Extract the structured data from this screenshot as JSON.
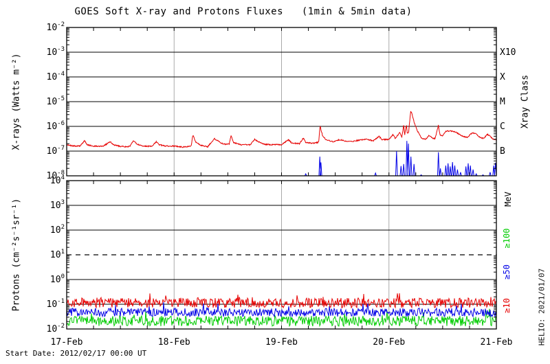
{
  "title": "GOES Soft X-ray and Protons Fluxes   (1min & 5min data)",
  "start_date": "Start Date: 2012/02/17 00:00 UT",
  "credit": "HELIO: 2021/01/07",
  "chart_data": {
    "type": "line",
    "title": "GOES Soft X-ray and Protons Fluxes (1min & 5min data)",
    "x_axis": {
      "range_hours": [
        0,
        96
      ],
      "tick_labels": [
        "17-Feb",
        "18-Feb",
        "19-Feb",
        "20-Feb",
        "21-Feb"
      ],
      "tick_hours": [
        0,
        24,
        48,
        72,
        96
      ],
      "minor_tick_hours": 6,
      "day_gridline_hours": [
        24,
        48,
        72
      ],
      "day_gridline_color": "#a9a9a9"
    },
    "panels": [
      {
        "id": "xray",
        "ylabel": "X-rays (Watts m⁻²)",
        "right_label": "Xray Class",
        "y_exp_range": [
          -8,
          -2
        ],
        "y_tick_exps": [
          -2,
          -3,
          -4,
          -5,
          -6,
          -7,
          -8
        ],
        "gridline_exps": [
          -3,
          -4,
          -5,
          -6,
          -7
        ],
        "class_labels": [
          {
            "text": "X10",
            "exp": -3
          },
          {
            "text": "X",
            "exp": -4
          },
          {
            "text": "M",
            "exp": -5
          },
          {
            "text": "C",
            "exp": -6
          },
          {
            "text": "B",
            "exp": -7
          }
        ],
        "series": [
          {
            "name": "xray-long-wavelength",
            "color": "#e60000",
            "style": "anchors",
            "noise_dex": 0.045,
            "seed": 11,
            "anchors": [
              [
                0,
                1.8e-07
              ],
              [
                1.5,
                1.6e-07
              ],
              [
                3,
                1.6e-07
              ],
              [
                4,
                2.6e-07
              ],
              [
                4.6,
                1.8e-07
              ],
              [
                6,
                1.6e-07
              ],
              [
                8,
                1.55e-07
              ],
              [
                9.8,
                2.4e-07
              ],
              [
                10.4,
                1.8e-07
              ],
              [
                12,
                1.55e-07
              ],
              [
                14,
                1.5e-07
              ],
              [
                15,
                2.7e-07
              ],
              [
                15.7,
                1.9e-07
              ],
              [
                17,
                1.6e-07
              ],
              [
                19,
                1.55e-07
              ],
              [
                20,
                2.4e-07
              ],
              [
                20.7,
                1.8e-07
              ],
              [
                22,
                1.6e-07
              ],
              [
                24,
                1.6e-07
              ],
              [
                26,
                1.45e-07
              ],
              [
                27.8,
                1.6e-07
              ],
              [
                28.2,
                4.5e-07
              ],
              [
                28.8,
                2.4e-07
              ],
              [
                30,
                1.7e-07
              ],
              [
                31.5,
                1.5e-07
              ],
              [
                33,
                3.2e-07
              ],
              [
                33.8,
                2.6e-07
              ],
              [
                35,
                1.9e-07
              ],
              [
                36.3,
                1.9e-07
              ],
              [
                36.7,
                4.2e-07
              ],
              [
                37.3,
                2.2e-07
              ],
              [
                39,
                1.8e-07
              ],
              [
                41,
                1.8e-07
              ],
              [
                42,
                3e-07
              ],
              [
                42.8,
                2.4e-07
              ],
              [
                44,
                1.9e-07
              ],
              [
                46,
                1.8e-07
              ],
              [
                48,
                1.8e-07
              ],
              [
                49.5,
                2.9e-07
              ],
              [
                50.3,
                2.1e-07
              ],
              [
                52,
                2e-07
              ],
              [
                52.9,
                3.4e-07
              ],
              [
                53.4,
                2.2e-07
              ],
              [
                55,
                2.1e-07
              ],
              [
                56.3,
                2.3e-07
              ],
              [
                56.6,
                1.05e-06
              ],
              [
                57.2,
                4e-07
              ],
              [
                58,
                2.9e-07
              ],
              [
                59.5,
                2.4e-07
              ],
              [
                61,
                2.9e-07
              ],
              [
                62.5,
                2.5e-07
              ],
              [
                64,
                2.5e-07
              ],
              [
                65.5,
                2.8e-07
              ],
              [
                67,
                3e-07
              ],
              [
                68.5,
                2.6e-07
              ],
              [
                69.8,
                4e-07
              ],
              [
                70.4,
                2.9e-07
              ],
              [
                72,
                3e-07
              ],
              [
                72.9,
                4.6e-07
              ],
              [
                73.4,
                3.3e-07
              ],
              [
                74.4,
                5.5e-07
              ],
              [
                74.9,
                3.7e-07
              ],
              [
                75.3,
                1.2e-06
              ],
              [
                75.5,
                4.5e-07
              ],
              [
                75.9,
                1.15e-06
              ],
              [
                76.1,
                5e-07
              ],
              [
                76.4,
                6e-07
              ],
              [
                76.85,
                4e-06
              ],
              [
                77.1,
                3.4e-06
              ],
              [
                77.6,
                1.5e-06
              ],
              [
                78.3,
                7e-07
              ],
              [
                79.3,
                3.3e-07
              ],
              [
                80.2,
                3e-07
              ],
              [
                81,
                4.4e-07
              ],
              [
                81.6,
                3.4e-07
              ],
              [
                82.3,
                3.2e-07
              ],
              [
                83.05,
                1.1e-06
              ],
              [
                83.4,
                4.5e-07
              ],
              [
                84,
                4.2e-07
              ],
              [
                84.7,
                6.2e-07
              ],
              [
                85.5,
                6.6e-07
              ],
              [
                86.3,
                6.2e-07
              ],
              [
                87.2,
                5.5e-07
              ],
              [
                88,
                4.4e-07
              ],
              [
                88.8,
                3.8e-07
              ],
              [
                89.6,
                3.6e-07
              ],
              [
                90.6,
                5.6e-07
              ],
              [
                91.4,
                5e-07
              ],
              [
                92.3,
                3.6e-07
              ],
              [
                93.2,
                3.2e-07
              ],
              [
                93.9,
                4.8e-07
              ],
              [
                94.5,
                4.2e-07
              ],
              [
                95.3,
                3e-07
              ],
              [
                96,
                2.9e-07
              ]
            ]
          },
          {
            "name": "xray-short-wavelength",
            "color": "#0000e6",
            "style": "spikes",
            "floor": 1e-08,
            "spikes": [
              [
                53.4,
                1.2e-08
              ],
              [
                56.55,
                6e-08
              ],
              [
                56.8,
                3.5e-08
              ],
              [
                69.0,
                1.3e-08
              ],
              [
                71.1,
                1e-08
              ],
              [
                73.7,
                1e-07
              ],
              [
                74.7,
                2.5e-08
              ],
              [
                75.3,
                3e-08
              ],
              [
                76.0,
                2.6e-07
              ],
              [
                76.35,
                2e-07
              ],
              [
                76.9,
                6e-08
              ],
              [
                77.6,
                3e-08
              ],
              [
                79.2,
                1.1e-08
              ],
              [
                83.05,
                9e-08
              ],
              [
                83.5,
                2e-08
              ],
              [
                84.7,
                2.6e-08
              ],
              [
                85.2,
                3.2e-08
              ],
              [
                85.7,
                2.4e-08
              ],
              [
                86.2,
                3.6e-08
              ],
              [
                86.7,
                2.6e-08
              ],
              [
                87.3,
                1.8e-08
              ],
              [
                88.0,
                1.4e-08
              ],
              [
                89.2,
                2.4e-08
              ],
              [
                89.7,
                3.2e-08
              ],
              [
                90.2,
                2.6e-08
              ],
              [
                90.8,
                1.8e-08
              ],
              [
                91.5,
                1.2e-08
              ],
              [
                93.0,
                1.1e-08
              ],
              [
                94.6,
                1.4e-08
              ],
              [
                95.4,
                2.6e-08
              ],
              [
                95.8,
                3.4e-08
              ]
            ]
          }
        ]
      },
      {
        "id": "protons",
        "ylabel": "Protons (cm⁻²s⁻¹sr⁻¹)",
        "right_label": "MeV",
        "y_exp_range": [
          -2,
          4
        ],
        "y_tick_exps": [
          4,
          3,
          2,
          1,
          0,
          -1,
          -2
        ],
        "gridline_exps": [
          3,
          2,
          0,
          -1
        ],
        "dashed_gridline_exps": [
          1
        ],
        "series": [
          {
            "name": "protons-ge100MeV",
            "label": "≥100",
            "color": "#00cc00",
            "style": "noise",
            "base": 0.021,
            "noise_dex": 0.21,
            "seed": 9
          },
          {
            "name": "protons-ge50MeV",
            "label": "≥50",
            "color": "#0000e6",
            "style": "noise",
            "base": 0.047,
            "noise_dex": 0.17,
            "seed": 5
          },
          {
            "name": "protons-ge10MeV",
            "label": "≥10",
            "color": "#e60000",
            "style": "noise",
            "base": 0.115,
            "noise_dex": 0.2,
            "seed": 2
          }
        ]
      }
    ]
  }
}
